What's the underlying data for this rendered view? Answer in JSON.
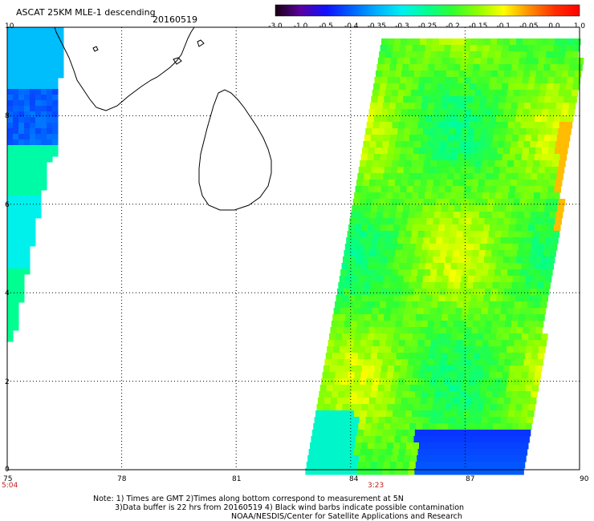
{
  "header": {
    "title": "ASCAT 25KM MLE-1 descending",
    "date": "20160519"
  },
  "colorbar": {
    "labels": [
      "-3.0",
      "-1.0",
      "-0.5",
      "-0.4",
      "-0.35",
      "-0.3",
      "-0.25",
      "-0.2",
      "-0.15",
      "-0.1",
      "-0.05",
      "0.0",
      "1.0"
    ],
    "stops": [
      "#1a0010",
      "#5a00a0",
      "#1010ff",
      "#0060ff",
      "#00b0ff",
      "#00f0f0",
      "#00ff90",
      "#30ff30",
      "#90ff00",
      "#ffff00",
      "#ff9000",
      "#ff3000",
      "#ff0000"
    ]
  },
  "axes": {
    "x_ticks": [
      "75",
      "78",
      "81",
      "84",
      "87",
      "90"
    ],
    "y_ticks": [
      "10",
      "8",
      "6",
      "4",
      "2",
      "0"
    ],
    "x_range": [
      75,
      90
    ],
    "y_range": [
      0,
      10
    ]
  },
  "times": {
    "left_swath": "5:04",
    "right_swath": "3:23"
  },
  "notes": {
    "line1": "Note: 1) Times are GMT 2)Times along bottom correspond to measurement at 5N",
    "line2": "3)Data buffer is 22 hrs from 20160519 4) Black wind barbs indicate possible contamination",
    "line3": "NOAA/NESDIS/Center for Satellite Applications and Research"
  }
}
